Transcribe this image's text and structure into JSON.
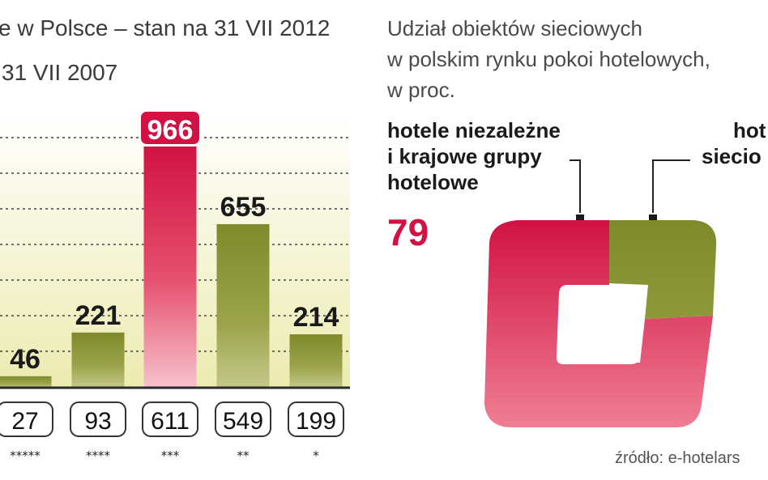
{
  "left": {
    "title_line1": "e w Polsce – stan na 31 VII 2012",
    "title_line2": "31 VII 2007"
  },
  "right": {
    "title_lines": [
      "Udział obiektów sieciowych",
      "w polskim rynku pokoi hotelowych,",
      "w proc."
    ],
    "legend_independent_lines": [
      "hotele niezależne",
      "i krajowe grupy",
      "hotelowe"
    ],
    "legend_independent_value": "79",
    "legend_chain_lines": [
      "hot",
      "siecio"
    ],
    "source": "źródło: e-hotelars"
  },
  "colors": {
    "red": "#d11242",
    "olive": "#7f8a2c",
    "olive_light": "#c4c98a",
    "bg_gradient_top": "#ffffff",
    "bg_gradient_bottom": "#ecebb0"
  },
  "chart_data": [
    {
      "type": "bar",
      "title": "e w Polsce – stan na 31 VII 2012",
      "categories": [
        "*****",
        "****",
        "***",
        "**",
        "*"
      ],
      "series": [
        {
          "name": "31 VII 2012",
          "values": [
            46,
            221,
            966,
            655,
            214
          ]
        },
        {
          "name": "31 VII 2007",
          "values": [
            27,
            93,
            611,
            549,
            199
          ]
        }
      ],
      "highlight_index": 2,
      "ylim": [
        0,
        1050
      ]
    },
    {
      "type": "pie",
      "title": "Udział obiektów sieciowych w polskim rynku pokoi hotelowych, w proc.",
      "slices": [
        {
          "label": "hotele niezależne i krajowe grupy hotelowe",
          "value": 79,
          "color": "#d11242"
        },
        {
          "label": "hot siecio",
          "value": 21,
          "color": "#7f8a2c"
        }
      ]
    }
  ]
}
